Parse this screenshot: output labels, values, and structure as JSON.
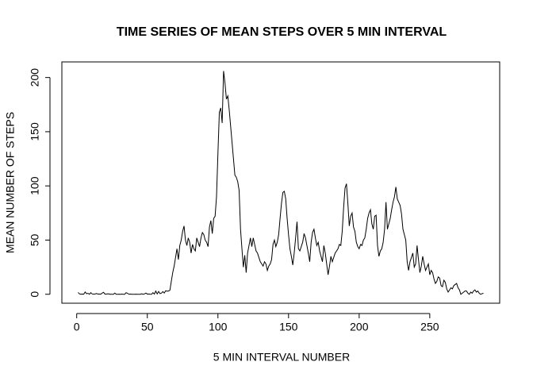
{
  "chart_data": {
    "type": "line",
    "title": "TIME SERIES OF MEAN STEPS OVER 5 MIN INTERVAL",
    "x_label": "5 MIN INTERVAL NUMBER",
    "y_label": "MEAN NUMBER OF STEPS",
    "color": "#000000",
    "x": [
      1,
      2,
      3,
      4,
      5,
      6,
      7,
      8,
      9,
      10,
      11,
      12,
      13,
      14,
      15,
      16,
      17,
      18,
      19,
      20,
      21,
      22,
      23,
      24,
      25,
      26,
      27,
      28,
      29,
      30,
      31,
      32,
      33,
      34,
      35,
      36,
      37,
      38,
      39,
      40,
      41,
      42,
      43,
      44,
      45,
      46,
      47,
      48,
      49,
      50,
      51,
      52,
      53,
      54,
      55,
      56,
      57,
      58,
      59,
      60,
      61,
      62,
      63,
      64,
      65,
      66,
      67,
      68,
      69,
      70,
      71,
      72,
      73,
      74,
      75,
      76,
      77,
      78,
      79,
      80,
      81,
      82,
      83,
      84,
      85,
      86,
      87,
      88,
      89,
      90,
      91,
      92,
      93,
      94,
      95,
      96,
      97,
      98,
      99,
      100,
      101,
      102,
      103,
      104,
      105,
      106,
      107,
      108,
      109,
      110,
      111,
      112,
      113,
      114,
      115,
      116,
      117,
      118,
      119,
      120,
      121,
      122,
      123,
      124,
      125,
      126,
      127,
      128,
      129,
      130,
      131,
      132,
      133,
      134,
      135,
      136,
      137,
      138,
      139,
      140,
      141,
      142,
      143,
      144,
      145,
      146,
      147,
      148,
      149,
      150,
      151,
      152,
      153,
      154,
      155,
      156,
      157,
      158,
      159,
      160,
      161,
      162,
      163,
      164,
      165,
      166,
      167,
      168,
      169,
      170,
      171,
      172,
      173,
      174,
      175,
      176,
      177,
      178,
      179,
      180,
      181,
      182,
      183,
      184,
      185,
      186,
      187,
      188,
      189,
      190,
      191,
      192,
      193,
      194,
      195,
      196,
      197,
      198,
      199,
      200,
      201,
      202,
      203,
      204,
      205,
      206,
      207,
      208,
      209,
      210,
      211,
      212,
      213,
      214,
      215,
      216,
      217,
      218,
      219,
      220,
      221,
      222,
      223,
      224,
      225,
      226,
      227,
      228,
      229,
      230,
      231,
      232,
      233,
      234,
      235,
      236,
      237,
      238,
      239,
      240,
      241,
      242,
      243,
      244,
      245,
      246,
      247,
      248,
      249,
      250,
      251,
      252,
      253,
      254,
      255,
      256,
      257,
      258,
      259,
      260,
      261,
      262,
      263,
      264,
      265,
      266,
      267,
      268,
      269,
      270,
      271,
      272,
      273,
      274,
      275,
      276,
      277,
      278,
      279,
      280,
      281,
      282,
      283,
      284,
      285,
      286,
      287,
      288
    ],
    "values": [
      1.7,
      0.3,
      0.1,
      0.2,
      0.1,
      2.1,
      0.5,
      0.9,
      0,
      1.5,
      0.3,
      0.1,
      0.3,
      0.7,
      0.2,
      0.3,
      0,
      1.1,
      1.8,
      0.2,
      0.2,
      0.4,
      0.3,
      0,
      0,
      0,
      1.1,
      0,
      0,
      0.1,
      0,
      0.2,
      0,
      0,
      1.5,
      0.9,
      0,
      0.2,
      0,
      0,
      0,
      0.1,
      0,
      0,
      0,
      0.4,
      0,
      0.3,
      1.1,
      0.2,
      0.3,
      0.1,
      0,
      1.5,
      0.2,
      3.0,
      0.3,
      2.6,
      0.6,
      1.0,
      2.5,
      1.1,
      3.2,
      2.8,
      3.0,
      3.7,
      12,
      20,
      26,
      34,
      42,
      32,
      45,
      50,
      58,
      63,
      50,
      45,
      52,
      48,
      38,
      46,
      42,
      40,
      52,
      48,
      44,
      52,
      57,
      55,
      50,
      48,
      44,
      62,
      68,
      56,
      70,
      72,
      90,
      130,
      168,
      172,
      158,
      206,
      195,
      180,
      183,
      170,
      155,
      140,
      125,
      110,
      108,
      104,
      96,
      60,
      42,
      25,
      36,
      20,
      38,
      45,
      52,
      44,
      52,
      46,
      40,
      38,
      34,
      30,
      28,
      26,
      30,
      28,
      22,
      26,
      28,
      32,
      46,
      50,
      44,
      48,
      55,
      70,
      84,
      94,
      95,
      88,
      70,
      55,
      42,
      35,
      27,
      38,
      52,
      67,
      42,
      40,
      44,
      48,
      56,
      52,
      45,
      38,
      30,
      48,
      57,
      60,
      52,
      45,
      48,
      40,
      35,
      30,
      45,
      38,
      28,
      18,
      26,
      35,
      30,
      34,
      38,
      40,
      42,
      46,
      45,
      58,
      80,
      98,
      102,
      84,
      63,
      72,
      75,
      62,
      58,
      48,
      44,
      42,
      46,
      45,
      50,
      52,
      60,
      70,
      75,
      78,
      65,
      60,
      72,
      73,
      45,
      35,
      40,
      42,
      48,
      60,
      85,
      60,
      65,
      70,
      78,
      85,
      90,
      99,
      88,
      85,
      82,
      74,
      60,
      55,
      50,
      30,
      22,
      30,
      34,
      38,
      25,
      28,
      45,
      32,
      20,
      26,
      35,
      28,
      22,
      25,
      28,
      18,
      22,
      20,
      14,
      10,
      12,
      16,
      15,
      8,
      7,
      13,
      11,
      5,
      2,
      4,
      6,
      5,
      8,
      9,
      10,
      6,
      4,
      0,
      1,
      2,
      3,
      3,
      1,
      0,
      2,
      1,
      3,
      4,
      2,
      3,
      1,
      0,
      0.5,
      1
    ],
    "xlim": [
      -10.5,
      299.5
    ],
    "xticks": [
      0,
      50,
      100,
      150,
      200,
      250
    ],
    "ylim": [
      -8.25,
      214.4
    ],
    "yticks": [
      0,
      50,
      100,
      150,
      200
    ]
  }
}
